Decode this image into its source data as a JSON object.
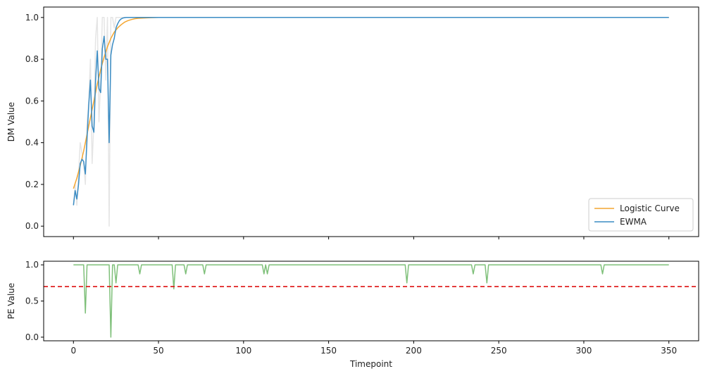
{
  "chart_data": [
    {
      "type": "line",
      "xlabel": "",
      "ylabel": "DM Value",
      "xlim": [
        -17.5,
        367.5
      ],
      "ylim": [
        -0.05,
        1.05
      ],
      "xticks": [
        0,
        50,
        100,
        150,
        200,
        250,
        300,
        350
      ],
      "show_x_tick_labels": false,
      "yticks": [
        0.0,
        0.2,
        0.4,
        0.6,
        0.8,
        1.0
      ],
      "ytick_labels": [
        "0.0",
        "0.2",
        "0.4",
        "0.6",
        "0.8",
        "1.0"
      ],
      "grid": false,
      "legend": {
        "placement": "bottom-right",
        "entries": [
          "Logistic Curve",
          "EWMA"
        ]
      },
      "series": [
        {
          "name": "",
          "color": "#cccccc",
          "alpha": 0.5,
          "x": [
            0,
            1,
            2,
            3,
            4,
            5,
            6,
            7,
            8,
            9,
            10,
            11,
            12,
            13,
            14,
            15,
            16,
            17,
            18,
            19,
            20,
            21,
            22,
            23,
            24,
            25,
            26,
            27,
            28,
            29,
            30,
            31,
            32,
            35,
            40,
            50,
            100,
            200,
            300,
            350
          ],
          "y": [
            0.1,
            0.2,
            0.1,
            0.25,
            0.4,
            0.35,
            0.3,
            0.2,
            0.5,
            0.6,
            0.8,
            0.3,
            0.5,
            0.9,
            1.0,
            0.5,
            0.7,
            1.0,
            1.0,
            0.7,
            1.0,
            0.0,
            1.0,
            1.0,
            0.95,
            1.0,
            1.0,
            1.0,
            1.0,
            1.0,
            1.0,
            1.0,
            1.0,
            1.0,
            1.0,
            1.0,
            1.0,
            1.0,
            1.0,
            1.0
          ]
        },
        {
          "name": "Logistic Curve",
          "color": "#f4a630",
          "alpha": 1,
          "x": [
            0,
            2,
            4,
            6,
            8,
            10,
            12,
            14,
            16,
            18,
            20,
            22,
            24,
            26,
            28,
            30,
            32,
            34,
            36,
            38,
            40,
            45,
            50,
            60,
            80,
            100,
            150,
            200,
            250,
            300,
            350
          ],
          "y": [
            0.18,
            0.23,
            0.29,
            0.36,
            0.44,
            0.52,
            0.6,
            0.68,
            0.75,
            0.81,
            0.86,
            0.9,
            0.93,
            0.95,
            0.965,
            0.977,
            0.985,
            0.99,
            0.994,
            0.996,
            0.997,
            0.999,
            1.0,
            1.0,
            1.0,
            1.0,
            1.0,
            1.0,
            1.0,
            1.0,
            1.0
          ]
        },
        {
          "name": "EWMA",
          "color": "#3a8cc4",
          "alpha": 1,
          "x": [
            0,
            1,
            2,
            3,
            4,
            5,
            6,
            7,
            8,
            9,
            10,
            11,
            12,
            13,
            14,
            15,
            16,
            17,
            18,
            19,
            20,
            21,
            22,
            23,
            24,
            25,
            26,
            27,
            28,
            29,
            30,
            31,
            32,
            33,
            35,
            40,
            50,
            100,
            200,
            300,
            350
          ],
          "y": [
            0.1,
            0.17,
            0.13,
            0.2,
            0.3,
            0.32,
            0.31,
            0.25,
            0.42,
            0.58,
            0.7,
            0.48,
            0.45,
            0.7,
            0.84,
            0.66,
            0.64,
            0.85,
            0.91,
            0.8,
            0.8,
            0.4,
            0.82,
            0.87,
            0.9,
            0.95,
            0.97,
            0.985,
            0.993,
            0.997,
            0.999,
            1.0,
            1.0,
            1.0,
            1.0,
            1.0,
            1.0,
            1.0,
            1.0,
            1.0,
            1.0
          ]
        }
      ]
    },
    {
      "type": "line",
      "xlabel": "Timepoint",
      "ylabel": "PE Value",
      "xlim": [
        -17.5,
        367.5
      ],
      "ylim": [
        -0.05,
        1.05
      ],
      "xticks": [
        0,
        50,
        100,
        150,
        200,
        250,
        300,
        350
      ],
      "xtick_labels": [
        "0",
        "50",
        "100",
        "150",
        "200",
        "250",
        "300",
        "350"
      ],
      "yticks": [
        0.0,
        0.5,
        1.0
      ],
      "ytick_labels": [
        "0.0",
        "0.5",
        "1.0"
      ],
      "grid": false,
      "threshold": {
        "value": 0.7,
        "color": "#dd1111",
        "style": "dashed"
      },
      "series": [
        {
          "name": "",
          "color": "#7fc07a",
          "alpha": 1,
          "x": [
            0,
            6,
            7,
            8,
            21,
            22,
            23,
            24,
            25,
            26,
            38,
            39,
            40,
            58,
            59,
            60,
            65,
            66,
            67,
            76,
            77,
            78,
            111,
            112,
            113,
            114,
            115,
            116,
            195,
            196,
            197,
            234,
            235,
            236,
            242,
            243,
            244,
            310,
            311,
            312,
            350
          ],
          "y": [
            1,
            1,
            0.333,
            1,
            1,
            0.0,
            1,
            1,
            0.75,
            1,
            1,
            0.875,
            1,
            1,
            0.667,
            1,
            1,
            0.875,
            1,
            1,
            0.875,
            1,
            1,
            0.875,
            1,
            0.875,
            1,
            1,
            1,
            0.75,
            1,
            1,
            0.875,
            1,
            1,
            0.75,
            1,
            1,
            0.875,
            1,
            1
          ]
        }
      ]
    }
  ]
}
